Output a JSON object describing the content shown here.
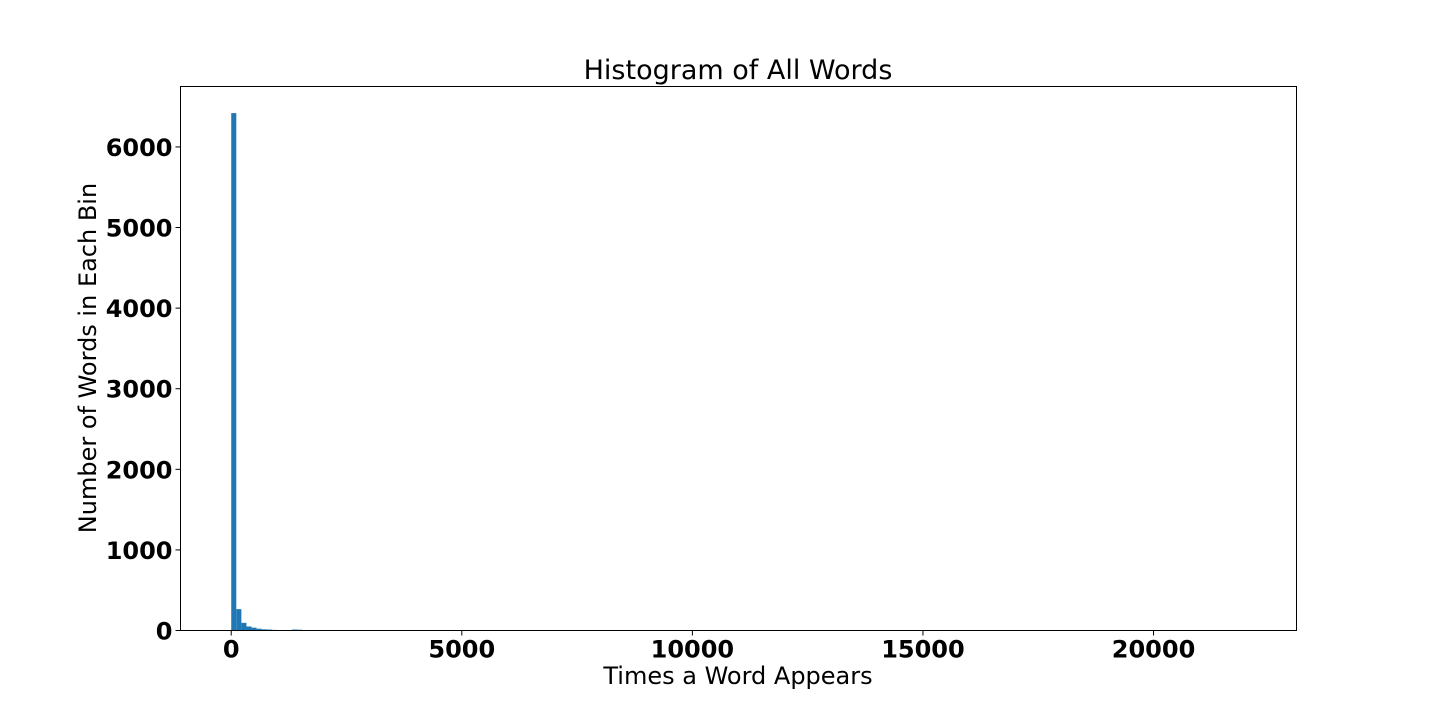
{
  "chart_data": {
    "type": "bar",
    "title": "Histogram of All Words",
    "xlabel": "Times a Word Appears",
    "ylabel": "Number of Words in Each Bin",
    "bar_color": "#1f77b4",
    "xlim": [
      -1100,
      23100
    ],
    "ylim": [
      0,
      6750
    ],
    "xticks": [
      0,
      5000,
      10000,
      15000,
      20000
    ],
    "xtick_labels": [
      "0",
      "5000",
      "10000",
      "15000",
      "20000"
    ],
    "yticks": [
      0,
      1000,
      2000,
      3000,
      4000,
      5000,
      6000
    ],
    "ytick_labels": [
      "0",
      "1000",
      "2000",
      "3000",
      "4000",
      "5000",
      "6000"
    ],
    "grid": false,
    "legend": "none",
    "bins": [
      {
        "x0": 0,
        "x1": 110,
        "value": 6420
      },
      {
        "x0": 110,
        "x1": 220,
        "value": 265
      },
      {
        "x0": 220,
        "x1": 330,
        "value": 95
      },
      {
        "x0": 330,
        "x1": 440,
        "value": 50
      },
      {
        "x0": 440,
        "x1": 550,
        "value": 35
      },
      {
        "x0": 550,
        "x1": 660,
        "value": 22
      },
      {
        "x0": 660,
        "x1": 770,
        "value": 15
      },
      {
        "x0": 770,
        "x1": 880,
        "value": 12
      },
      {
        "x0": 880,
        "x1": 990,
        "value": 8
      },
      {
        "x0": 990,
        "x1": 1100,
        "value": 6
      },
      {
        "x0": 1100,
        "x1": 1210,
        "value": 4
      },
      {
        "x0": 1210,
        "x1": 1320,
        "value": 3
      },
      {
        "x0": 1320,
        "x1": 1430,
        "value": 12
      },
      {
        "x0": 1430,
        "x1": 1540,
        "value": 10
      },
      {
        "x0": 1540,
        "x1": 1650,
        "value": 6
      },
      {
        "x0": 1650,
        "x1": 1760,
        "value": 2
      },
      {
        "x0": 1760,
        "x1": 1870,
        "value": 2
      },
      {
        "x0": 1870,
        "x1": 1980,
        "value": 1
      },
      {
        "x0": 2200,
        "x1": 2310,
        "value": 1
      },
      {
        "x0": 2530,
        "x1": 2640,
        "value": 1
      }
    ]
  }
}
